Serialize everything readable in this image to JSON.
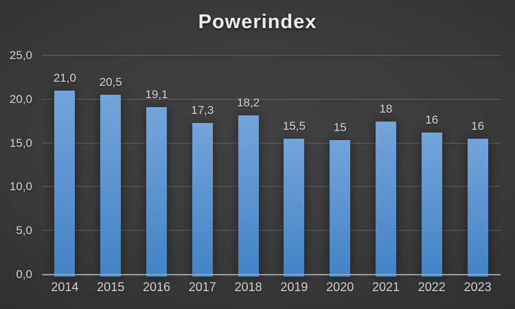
{
  "chart_data": {
    "type": "bar",
    "title": "Powerindex",
    "categories": [
      "2014",
      "2015",
      "2016",
      "2017",
      "2018",
      "2019",
      "2020",
      "2021",
      "2022",
      "2023"
    ],
    "values": [
      21.0,
      20.5,
      19.1,
      17.3,
      18.2,
      15.5,
      15.4,
      17.5,
      16.2,
      15.5
    ],
    "data_labels": [
      "21,0",
      "20,5",
      "19,1",
      "17,3",
      "18,2",
      "15,5",
      "15",
      "18",
      "16",
      "16"
    ],
    "xlabel": "",
    "ylabel": "",
    "ylim": [
      0,
      25
    ],
    "ytick_step": 5,
    "ytick_labels": [
      "0,0",
      "5,0",
      "10,0",
      "15,0",
      "20,0",
      "25,0"
    ],
    "grid": true,
    "legend": false,
    "colors": {
      "bar_gradient_top": "#74a4db",
      "bar_gradient_bottom": "#4283c6",
      "background_center": "#424242",
      "background_edge": "#262626",
      "gridline": "#626262",
      "axis_line": "#a6a6a6",
      "label_text": "#d9d9d9",
      "title_text": "#ececec"
    }
  }
}
